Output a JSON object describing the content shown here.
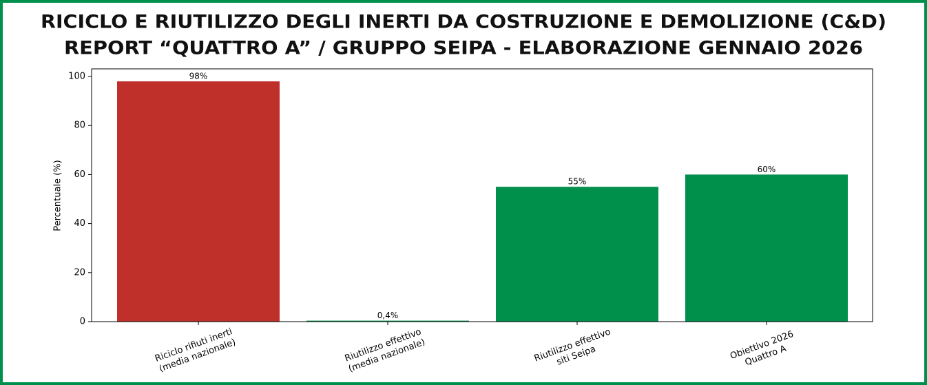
{
  "chart_data": {
    "type": "bar",
    "title": "RICICLO E RIUTILIZZO DEGLI INERTI DA COSTRUZIONE E DEMOLIZIONE (C&D)",
    "subtitle": "REPORT “QUATTRO A” / GRUPPO SEIPA - ELABORAZIONE GENNAIO 2026",
    "ylabel": "Percentuale (%)",
    "categories": [
      [
        "Riciclo rifiuti inerti",
        "(media nazionale)"
      ],
      [
        "Riutilizzo effettivo",
        "(media nazionale)"
      ],
      [
        "Riutilizzo effettivo",
        "siti Seipa"
      ],
      [
        "Obiettivo 2026",
        "Quattro A"
      ]
    ],
    "values": [
      98,
      0.4,
      55,
      60
    ],
    "value_labels": [
      "98%",
      "0,4%",
      "55%",
      "60%"
    ],
    "colors": [
      "#c0302a",
      "#00904c",
      "#00904c",
      "#00904c"
    ],
    "ylim": [
      0,
      103.1
    ],
    "yticks": [
      0,
      20,
      40,
      60,
      80,
      100
    ],
    "grid": false
  }
}
